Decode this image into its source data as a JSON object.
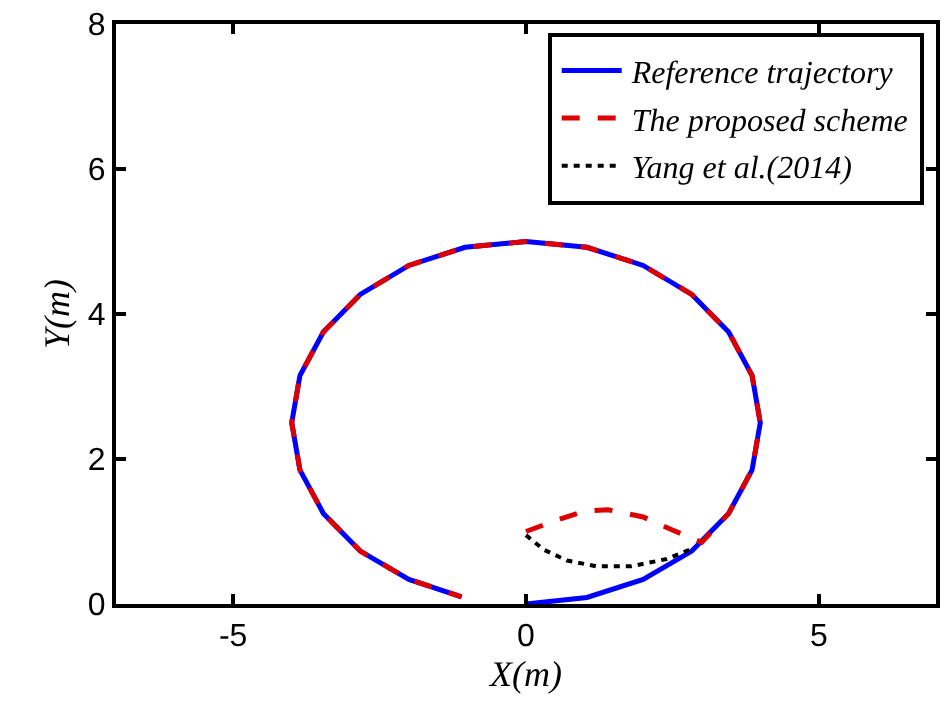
{
  "chart_data": {
    "type": "line",
    "xlabel": "X(m)",
    "ylabel": "Y(m)",
    "xlim": [
      -7,
      7
    ],
    "ylim": [
      0,
      8
    ],
    "xticks": [
      -5,
      0,
      5
    ],
    "yticks": [
      0,
      2,
      4,
      6,
      8
    ],
    "legend": "top right",
    "marker": "none",
    "series": [
      {
        "name": "Reference trajectory",
        "color": "#0000ff",
        "line_style": "solid",
        "x": [
          0,
          1.04,
          2.0,
          2.83,
          3.46,
          3.86,
          4.0,
          3.86,
          3.46,
          2.83,
          2.0,
          1.04,
          0,
          -1.04,
          -2.0,
          -2.83,
          -3.46,
          -3.86,
          -4.0,
          -3.86,
          -3.46,
          -2.83,
          -2.0,
          -1.1
        ],
        "values": [
          0,
          0.09,
          0.34,
          0.73,
          1.25,
          1.85,
          2.5,
          3.15,
          3.75,
          4.27,
          4.67,
          4.92,
          5.0,
          4.92,
          4.67,
          4.27,
          3.75,
          3.15,
          2.5,
          1.85,
          1.25,
          0.73,
          0.34,
          0.1
        ]
      },
      {
        "name": "The proposed scheme",
        "color": "#dd0000",
        "line_style": "dashed",
        "x": [
          0,
          0.5,
          1.0,
          1.4,
          2.0,
          2.5,
          3.0,
          3.46,
          3.86,
          4.0,
          3.86,
          3.46,
          2.83,
          2.0,
          1.04,
          0,
          -1.04,
          -2.0,
          -2.83,
          -3.46,
          -3.86,
          -4.0,
          -3.86,
          -3.46,
          -2.83,
          -2.0,
          -1.1
        ],
        "values": [
          1.0,
          1.15,
          1.28,
          1.3,
          1.2,
          1.02,
          0.85,
          1.25,
          1.85,
          2.5,
          3.15,
          3.75,
          4.27,
          4.67,
          4.92,
          5.0,
          4.92,
          4.67,
          4.27,
          3.75,
          3.15,
          2.5,
          1.85,
          1.25,
          0.73,
          0.34,
          0.1
        ]
      },
      {
        "name": "Yang et al.(2014)",
        "color": "#000000",
        "line_style": "dotted",
        "x": [
          0,
          0.3,
          0.7,
          1.2,
          1.8,
          2.4,
          2.8
        ],
        "values": [
          0.95,
          0.75,
          0.6,
          0.52,
          0.52,
          0.62,
          0.75
        ]
      }
    ]
  }
}
